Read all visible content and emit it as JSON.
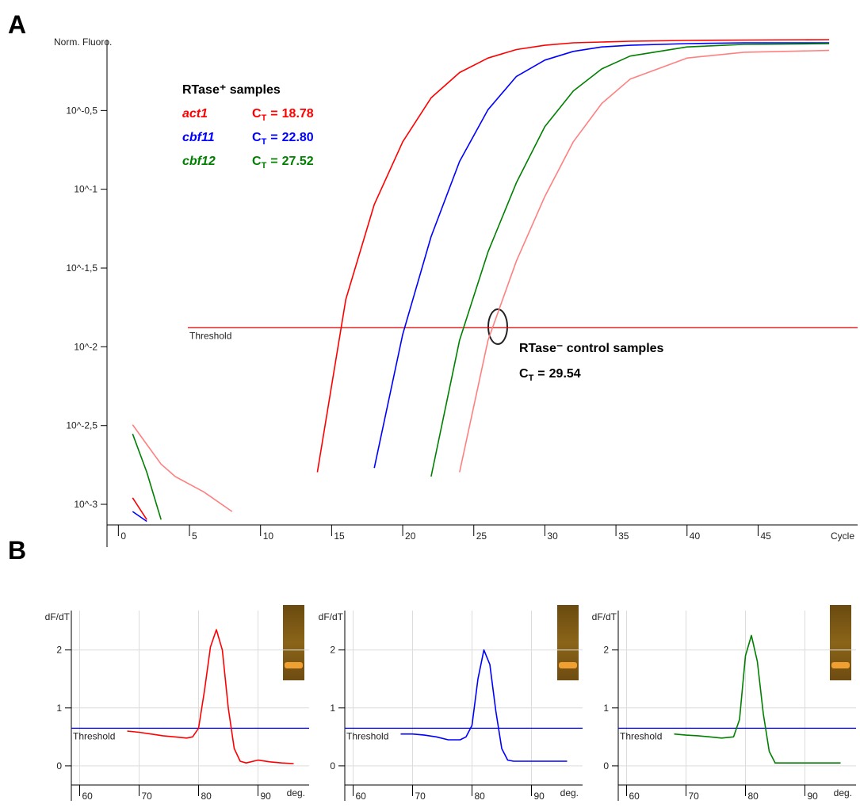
{
  "chart_data": [
    {
      "type": "line",
      "panel_label": "A",
      "y_label": "Norm. Fluoro.",
      "x_label": "Cycle",
      "log_y": true,
      "xlim": [
        -0.8,
        52
      ],
      "ylim": [
        0.00074,
        0.89
      ],
      "xticks": [
        0,
        5,
        10,
        15,
        20,
        25,
        30,
        35,
        40,
        45
      ],
      "yticks": [
        {
          "value": 0.001,
          "label": "10^-3"
        },
        {
          "value": 0.00316,
          "label": "10^-2,5"
        },
        {
          "value": 0.01,
          "label": "10^-2"
        },
        {
          "value": 0.0316,
          "label": "10^-1,5"
        },
        {
          "value": 0.1,
          "label": "10^-1"
        },
        {
          "value": 0.316,
          "label": "10^-0,5"
        }
      ],
      "threshold": 0.0132,
      "threshold_label": "Threshold",
      "threshold_color": "#ff0000",
      "annotation": "RTase⁺ samples",
      "ct_symbol": "C",
      "ct_subscript": "T",
      "ct_equals": "=",
      "x": [
        1,
        2,
        3,
        4,
        6,
        8,
        10,
        12,
        13,
        14,
        16,
        18,
        20,
        22,
        24,
        26,
        28,
        30,
        32,
        34,
        36,
        40,
        44,
        50
      ],
      "series": [
        {
          "name": "act1",
          "color": "#ff0000",
          "ct": "18.78",
          "values": [
            0.0011,
            0.0008,
            null,
            null,
            null,
            null,
            null,
            null,
            null,
            0.0016,
            0.02,
            0.08,
            0.2,
            0.38,
            0.55,
            0.68,
            0.77,
            0.82,
            0.85,
            0.86,
            0.87,
            0.88,
            0.885,
            0.89
          ]
        },
        {
          "name": "cbf11",
          "color": "#0000ff",
          "ct": "22.80",
          "values": [
            0.0009,
            0.00078,
            null,
            null,
            null,
            null,
            null,
            null,
            null,
            null,
            null,
            0.0017,
            0.012,
            0.05,
            0.15,
            0.32,
            0.52,
            0.66,
            0.75,
            0.8,
            0.82,
            0.84,
            0.85,
            0.85
          ]
        },
        {
          "name": "cbf12",
          "color": "#008000",
          "ct": "27.52",
          "values": [
            0.0028,
            0.0016,
            0.0008,
            null,
            null,
            null,
            null,
            null,
            null,
            null,
            null,
            null,
            null,
            0.0015,
            0.011,
            0.04,
            0.11,
            0.25,
            0.42,
            0.58,
            0.7,
            0.8,
            0.83,
            0.84
          ]
        },
        {
          "name": "RTase⁻ control samples",
          "color": "#ff8080",
          "label_color": "#000000",
          "ct": "29.54",
          "values": [
            0.0032,
            0.0024,
            0.0018,
            0.0015,
            0.0012,
            0.0009,
            null,
            null,
            null,
            null,
            null,
            null,
            null,
            null,
            0.0016,
            0.011,
            0.035,
            0.09,
            0.2,
            0.35,
            0.5,
            0.68,
            0.74,
            0.76
          ]
        }
      ]
    },
    {
      "type": "line",
      "panel_label": "B",
      "y_label": "dF/dT",
      "x_label": "deg.",
      "grid": true,
      "xlim": [
        58.6,
        98.6
      ],
      "ylim": [
        -0.33,
        2.68
      ],
      "xticks": [
        60,
        70,
        80,
        90
      ],
      "yticks": [
        0,
        1,
        2
      ],
      "threshold": 0.65,
      "threshold_label": "Threshold",
      "threshold_color": "#0000ff",
      "x": [
        68,
        70,
        72,
        74,
        76,
        78,
        79,
        80,
        81,
        82,
        83,
        84,
        85,
        86,
        87,
        88,
        90,
        92,
        94,
        96
      ],
      "series": [
        {
          "color": "#ff0000",
          "values": [
            0.6,
            0.58,
            0.55,
            0.52,
            0.5,
            0.48,
            0.5,
            0.65,
            1.3,
            2.05,
            2.35,
            2.0,
            1.0,
            0.3,
            0.08,
            0.05,
            0.1,
            0.07,
            0.05,
            0.04
          ]
        }
      ]
    },
    {
      "type": "line",
      "y_label": "dF/dT",
      "x_label": "deg.",
      "grid": true,
      "xlim": [
        58.6,
        98.6
      ],
      "ylim": [
        -0.33,
        2.68
      ],
      "xticks": [
        60,
        70,
        80,
        90
      ],
      "yticks": [
        0,
        1,
        2
      ],
      "threshold": 0.65,
      "threshold_label": "Threshold",
      "threshold_color": "#0000ff",
      "x": [
        68,
        70,
        72,
        74,
        76,
        78,
        79,
        80,
        81,
        82,
        83,
        84,
        85,
        86,
        87,
        88,
        90,
        92,
        94,
        96
      ],
      "series": [
        {
          "color": "#0000ff",
          "values": [
            0.55,
            0.55,
            0.53,
            0.5,
            0.45,
            0.45,
            0.5,
            0.7,
            1.5,
            2.0,
            1.75,
            0.95,
            0.3,
            0.1,
            0.08,
            0.08,
            0.08,
            0.08,
            0.08,
            0.08
          ]
        }
      ]
    },
    {
      "type": "line",
      "y_label": "dF/dT",
      "x_label": "deg.",
      "grid": true,
      "xlim": [
        58.6,
        98.6
      ],
      "ylim": [
        -0.33,
        2.68
      ],
      "xticks": [
        60,
        70,
        80,
        90
      ],
      "yticks": [
        0,
        1,
        2
      ],
      "threshold": 0.65,
      "threshold_label": "Threshold",
      "threshold_color": "#0000ff",
      "x": [
        68,
        70,
        72,
        74,
        76,
        78,
        79,
        80,
        81,
        82,
        83,
        84,
        85,
        86,
        87,
        88,
        90,
        92,
        94,
        96
      ],
      "series": [
        {
          "color": "#008000",
          "values": [
            0.55,
            0.53,
            0.52,
            0.5,
            0.48,
            0.5,
            0.8,
            1.9,
            2.25,
            1.8,
            0.9,
            0.25,
            0.05,
            0.05,
            0.05,
            0.05,
            0.05,
            0.05,
            0.05,
            0.05
          ]
        }
      ]
    }
  ]
}
